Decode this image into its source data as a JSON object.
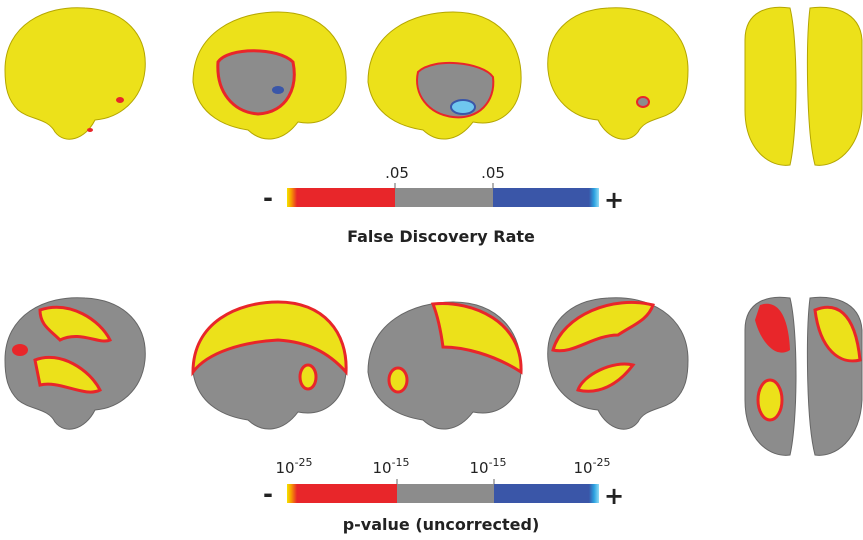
{
  "fdr_bar": {
    "minus": "-",
    "plus": "+",
    "ticks": [
      ".05",
      ".05"
    ],
    "title": "False Discovery Rate"
  },
  "pvalue_bar": {
    "minus": "-",
    "plus": "+",
    "ticks": [
      {
        "base": "10",
        "exponent": "-25"
      },
      {
        "base": "10",
        "exponent": "-15"
      },
      {
        "base": "10",
        "exponent": "-15"
      },
      {
        "base": "10",
        "exponent": "-25"
      }
    ],
    "title": "p-value (uncorrected)"
  }
}
